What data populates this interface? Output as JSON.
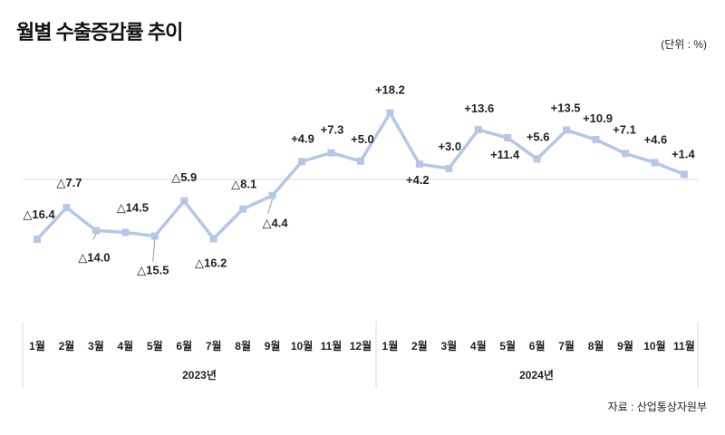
{
  "chart_data": {
    "type": "line",
    "title": "월별 수출증감률 추이",
    "unit_label": "(단위 : %)",
    "source": "자료 : 산업통상자원부",
    "groups": [
      {
        "label": "2023년",
        "categories": [
          "1월",
          "2월",
          "3월",
          "4월",
          "5월",
          "6월",
          "7월",
          "8월",
          "9월",
          "10월",
          "11월",
          "12월"
        ]
      },
      {
        "label": "2024년",
        "categories": [
          "1월",
          "2월",
          "3월",
          "4월",
          "5월",
          "6월",
          "7월",
          "8월",
          "9월",
          "10월",
          "11월"
        ]
      }
    ],
    "series": [
      {
        "name": "수출증감률",
        "values": [
          -16.4,
          -7.7,
          -14.0,
          -14.5,
          -15.5,
          -5.9,
          -16.2,
          -8.1,
          -4.4,
          4.9,
          7.3,
          5.0,
          18.2,
          4.2,
          3.0,
          13.6,
          11.4,
          5.6,
          13.5,
          10.9,
          7.1,
          4.6,
          1.4
        ],
        "labels": [
          "△16.4",
          "△7.7",
          "△14.0",
          "△14.5",
          "△15.5",
          "△5.9",
          "△16.2",
          "△8.1",
          "△4.4",
          "+4.9",
          "+7.3",
          "+5.0",
          "+18.2",
          "+4.2",
          "+3.0",
          "+13.6",
          "+11.4",
          "+5.6",
          "+13.5",
          "+10.9",
          "+7.1",
          "+4.6",
          "+1.4"
        ],
        "color": "#b4c7e7"
      }
    ],
    "ylim": [
      -20,
      20
    ],
    "grid": false,
    "zero_line": true
  }
}
